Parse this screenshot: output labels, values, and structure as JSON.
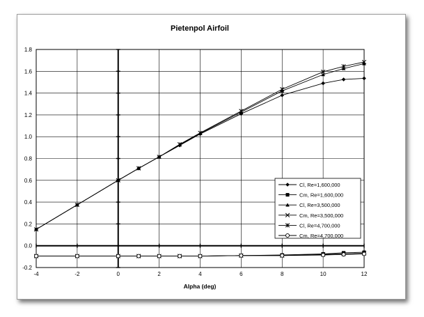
{
  "chart_data": {
    "type": "line",
    "title": "Pietenpol Airfoil",
    "xlabel": "Alpha (deg)",
    "ylabel": "",
    "xlim": [
      -4,
      12
    ],
    "ylim": [
      -0.2,
      1.8
    ],
    "xticks": [
      "-4",
      "-2",
      "0",
      "2",
      "4",
      "6",
      "8",
      "10",
      "12"
    ],
    "yticks": [
      "-0.2",
      "0.0",
      "0.2",
      "0.4",
      "0.6",
      "0.8",
      "1.0",
      "1.2",
      "1.4",
      "1.6",
      "1.8"
    ],
    "grid": true,
    "legend_position": "lower-right",
    "series": [
      {
        "name": "Cl,   Re=1,600,000",
        "marker": "diamond",
        "x": [
          -4,
          -2,
          0,
          1,
          2,
          3,
          4,
          6,
          8,
          10,
          11,
          12
        ],
        "y": [
          0.15,
          0.375,
          0.6,
          0.71,
          0.815,
          0.92,
          1.025,
          1.21,
          1.38,
          1.49,
          1.525,
          1.535
        ]
      },
      {
        "name": "Cm,  Re=1,600,000",
        "marker": "square",
        "x": [
          -4,
          -2,
          0,
          1,
          2,
          3,
          4,
          6,
          8,
          10,
          11,
          12
        ],
        "y": [
          -0.095,
          -0.095,
          -0.095,
          -0.095,
          -0.095,
          -0.095,
          -0.095,
          -0.09,
          -0.085,
          -0.075,
          -0.065,
          -0.06
        ]
      },
      {
        "name": "Cl,   Re=3,500,000",
        "marker": "triangle",
        "x": [
          -4,
          -2,
          0,
          1,
          2,
          3,
          4,
          6,
          8,
          10,
          11,
          12
        ],
        "y": [
          0.15,
          0.375,
          0.6,
          0.71,
          0.815,
          0.925,
          1.03,
          1.225,
          1.42,
          1.57,
          1.625,
          1.67
        ]
      },
      {
        "name": "Cm,  Re=3,500,000",
        "marker": "x",
        "x": [
          -4,
          -2,
          0,
          1,
          2,
          3,
          4,
          6,
          8,
          10,
          11,
          12
        ],
        "y": [
          -0.095,
          -0.095,
          -0.095,
          -0.095,
          -0.095,
          -0.095,
          -0.095,
          -0.09,
          -0.09,
          -0.08,
          -0.075,
          -0.07
        ]
      },
      {
        "name": "Cl,   Re=4,700,000",
        "marker": "star",
        "x": [
          -4,
          -2,
          0,
          1,
          2,
          3,
          4,
          6,
          8,
          10,
          11,
          12
        ],
        "y": [
          0.15,
          0.375,
          0.6,
          0.71,
          0.815,
          0.93,
          1.035,
          1.235,
          1.435,
          1.595,
          1.645,
          1.685
        ]
      },
      {
        "name": "Cm,  Re=4,700,000",
        "marker": "circle",
        "x": [
          -4,
          -2,
          0,
          1,
          2,
          3,
          4,
          6,
          8,
          10,
          11,
          12
        ],
        "y": [
          -0.095,
          -0.095,
          -0.095,
          -0.095,
          -0.095,
          -0.095,
          -0.095,
          -0.09,
          -0.09,
          -0.085,
          -0.08,
          -0.075
        ]
      }
    ]
  }
}
